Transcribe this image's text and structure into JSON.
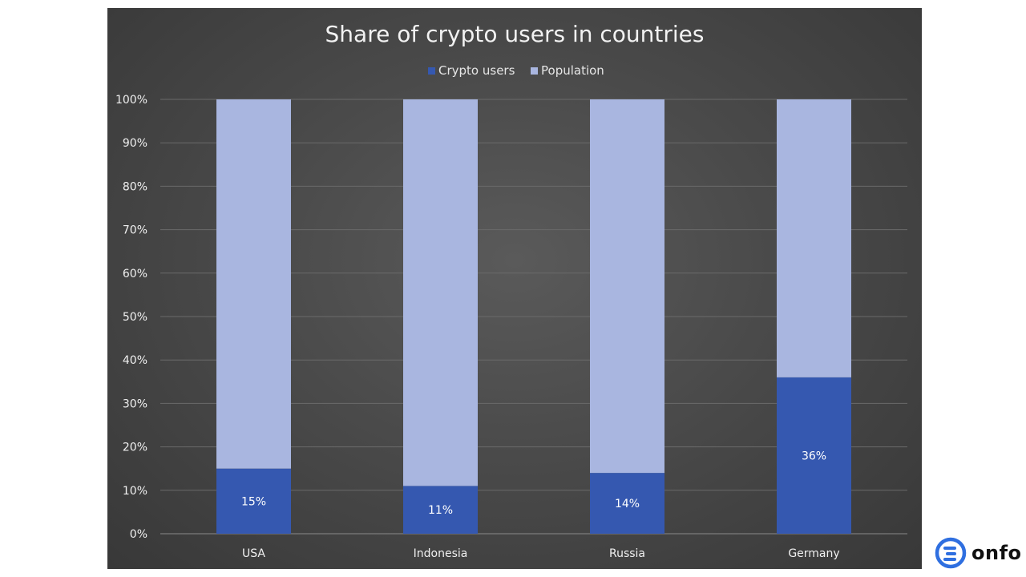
{
  "colors": {
    "crypto": "#3558b0",
    "population": "#a9b6e0",
    "gridline": "#6a6a6a",
    "axis": "#8a8a8a",
    "logo_accent": "#2f6fe0"
  },
  "brand": {
    "logo_text": "onfo",
    "logo_icon": "onfo-logo-icon"
  },
  "chart_data": {
    "type": "bar",
    "stacked": true,
    "title": "Share of crypto users in countries",
    "categories": [
      "USA",
      "Indonesia",
      "Russia",
      "Germany"
    ],
    "series": [
      {
        "name": "Crypto users",
        "values": [
          15,
          11,
          14,
          36
        ],
        "labels": [
          "15%",
          "11%",
          "14%",
          "36%"
        ]
      },
      {
        "name": "Population",
        "values": [
          85,
          89,
          86,
          64
        ]
      }
    ],
    "y_ticks": [
      "0%",
      "10%",
      "20%",
      "30%",
      "40%",
      "50%",
      "60%",
      "70%",
      "80%",
      "90%",
      "100%"
    ],
    "ylim": [
      0,
      100
    ],
    "grid": true,
    "legend": "top-center"
  }
}
